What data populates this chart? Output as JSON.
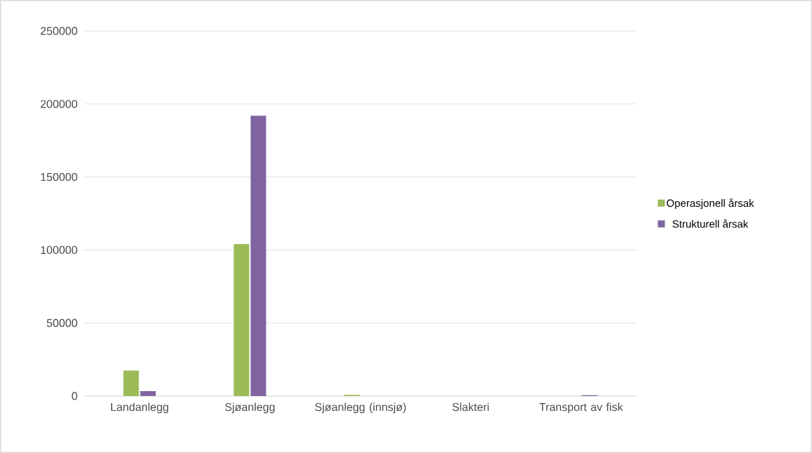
{
  "chart_data": {
    "type": "bar",
    "categories": [
      "Landanlegg",
      "Sjøanlegg",
      "Sjøanlegg (innsjø)",
      "Slakteri",
      "Transport av fisk"
    ],
    "series": [
      {
        "name": "Operasjonell årsak",
        "color": "#9bbb59",
        "values": [
          17400,
          104000,
          800,
          0,
          0
        ]
      },
      {
        "name": "Strukturell årsak",
        "color": "#8064a2",
        "values": [
          3400,
          192000,
          0,
          0,
          600
        ]
      }
    ],
    "ylim": [
      0,
      250000
    ],
    "yticks": [
      0,
      50000,
      100000,
      150000,
      200000,
      250000
    ],
    "grid": "y",
    "legend": "right"
  }
}
